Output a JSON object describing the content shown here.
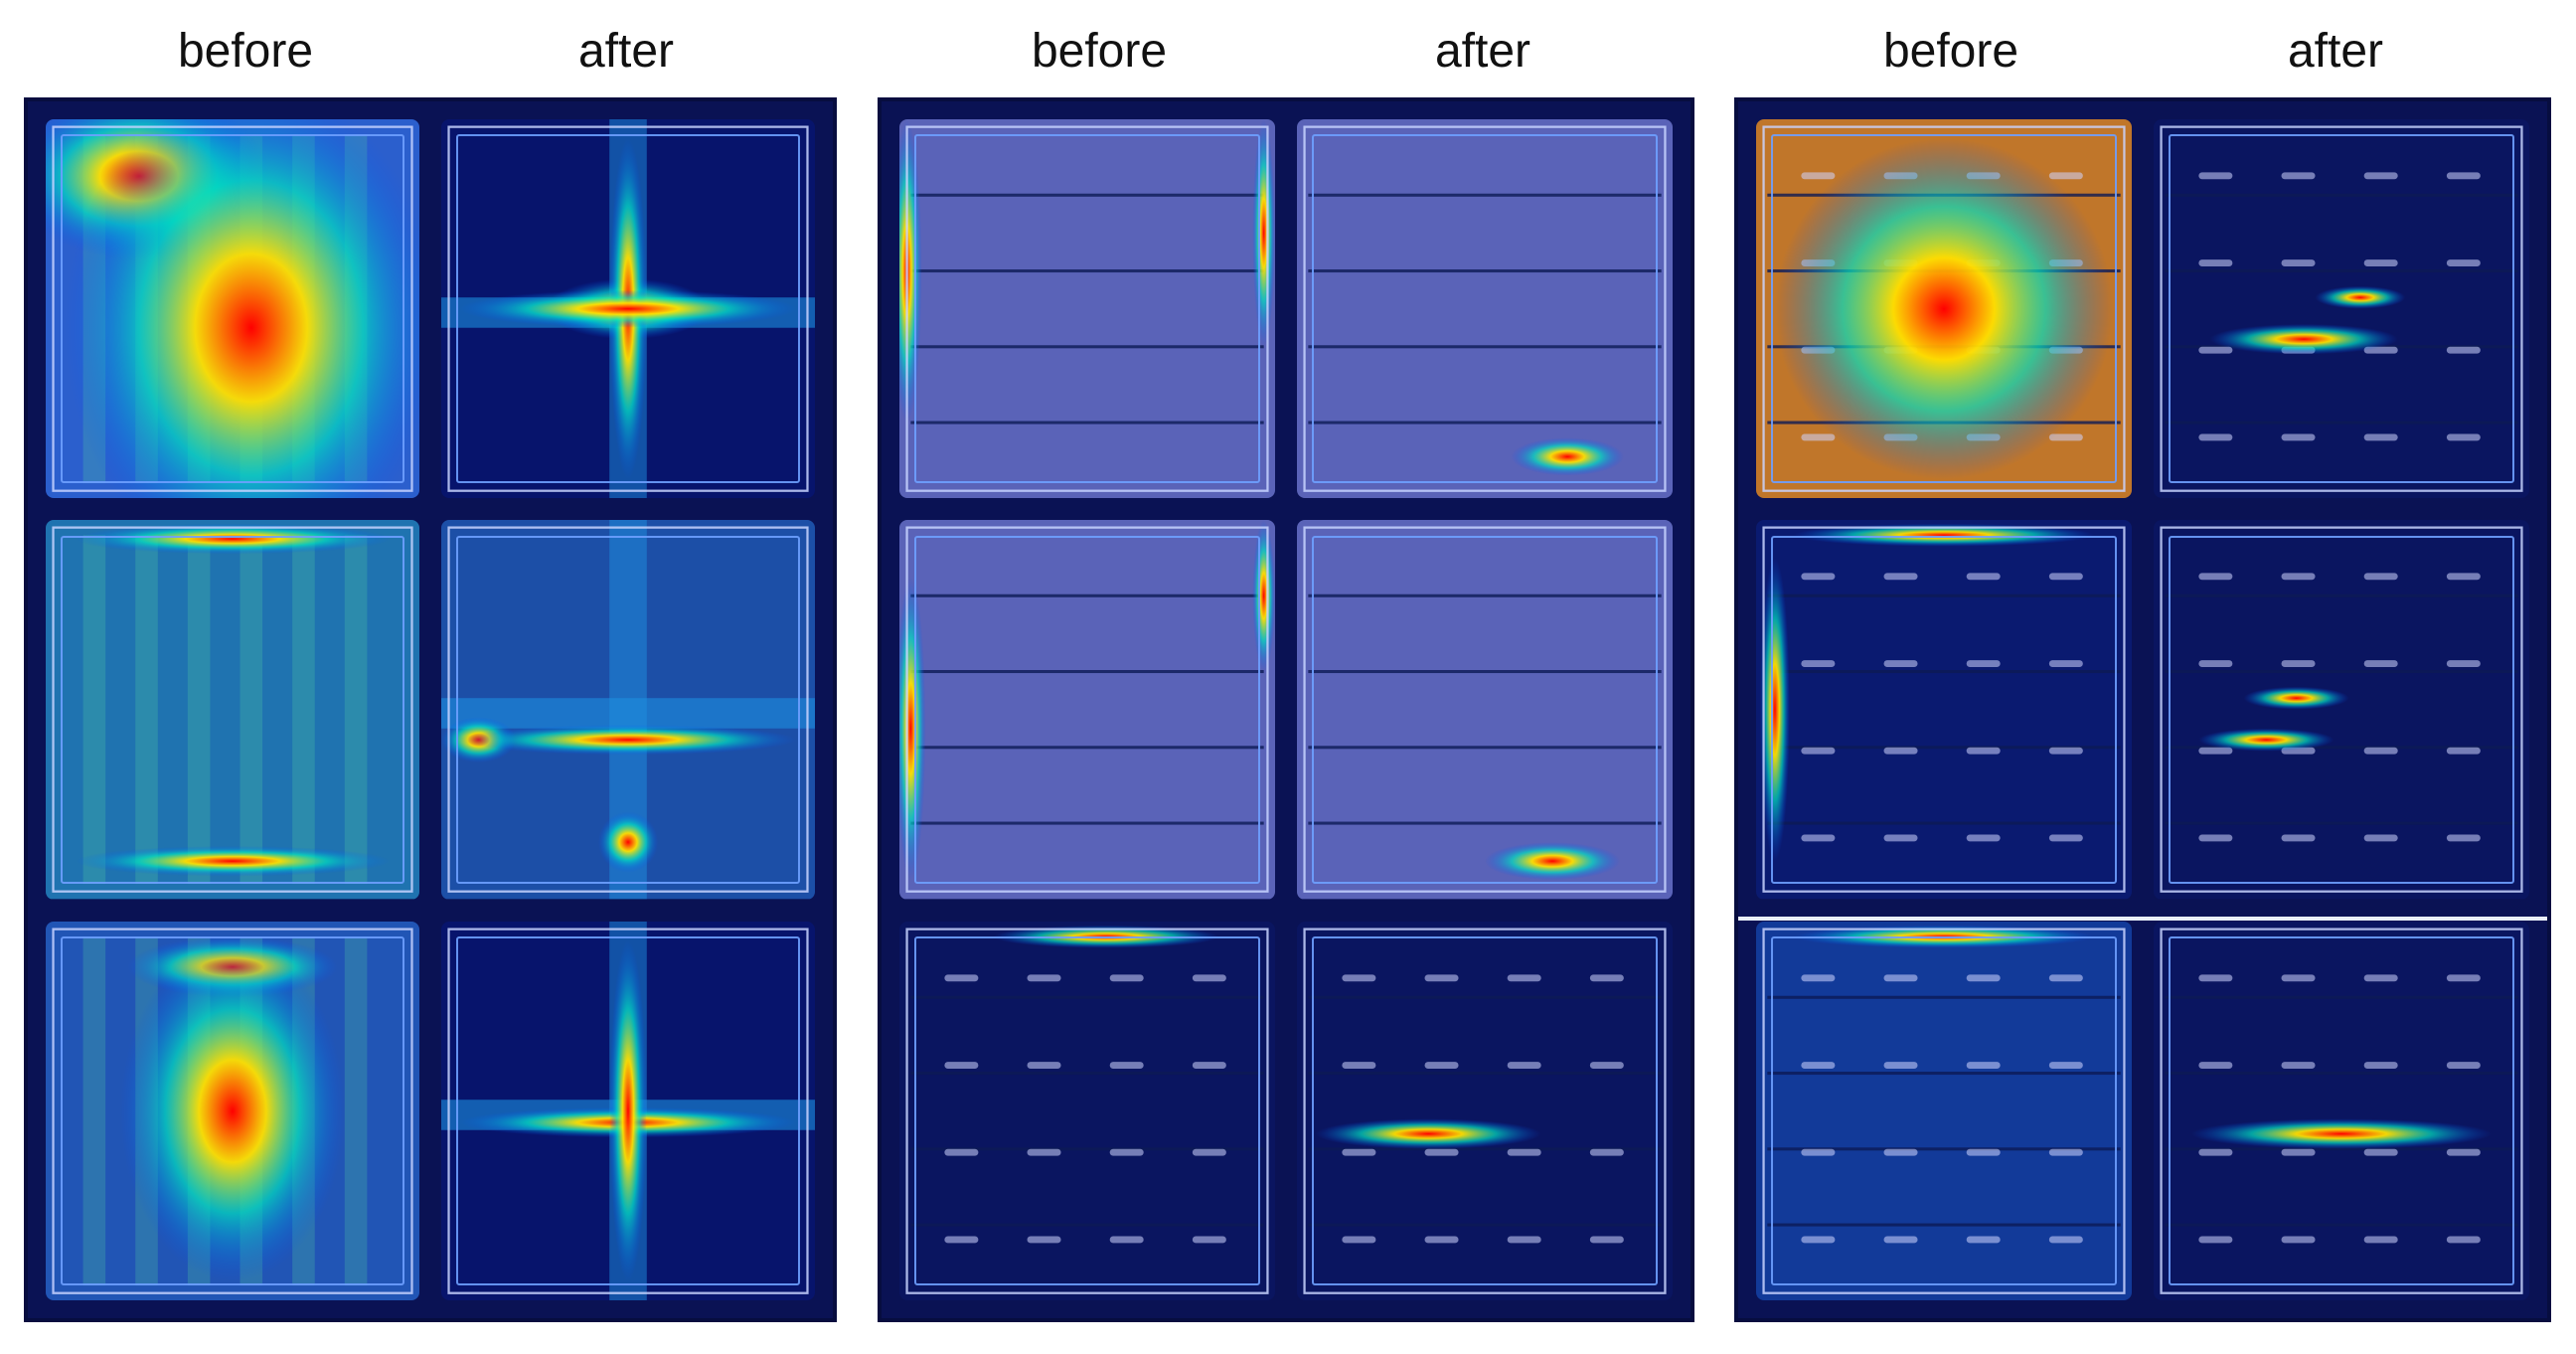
{
  "headers": [
    {
      "id": "p1-before",
      "label": "before"
    },
    {
      "id": "p1-after",
      "label": "after"
    },
    {
      "id": "p2-before",
      "label": "before"
    },
    {
      "id": "p2-after",
      "label": "after"
    },
    {
      "id": "p3-before",
      "label": "before"
    },
    {
      "id": "p3-after",
      "label": "after"
    }
  ],
  "images": [
    {
      "panel": 1,
      "row": 1,
      "col": "before",
      "base": "#2b5fcd",
      "hot": [
        [
          0.25,
          0.15,
          0.35,
          0.22
        ],
        [
          0.55,
          0.55,
          0.5,
          0.65
        ]
      ],
      "type": "uniform"
    },
    {
      "panel": 1,
      "row": 1,
      "col": "after",
      "base": "#07146c",
      "hot": [
        [
          0.5,
          0.5,
          0.22,
          0.08
        ],
        [
          0.5,
          0.5,
          0.05,
          0.45
        ],
        [
          0.5,
          0.5,
          0.45,
          0.05
        ]
      ],
      "type": "cross"
    },
    {
      "panel": 1,
      "row": 2,
      "col": "before",
      "base": "#1f73b0",
      "hot": [
        [
          0.5,
          0.05,
          0.42,
          0.04
        ],
        [
          0.5,
          0.9,
          0.42,
          0.04
        ]
      ],
      "type": "uniform"
    },
    {
      "panel": 1,
      "row": 2,
      "col": "after",
      "base": "#1c4fa7",
      "hot": [
        [
          0.1,
          0.58,
          0.1,
          0.06
        ],
        [
          0.5,
          0.85,
          0.08,
          0.08
        ],
        [
          0.5,
          0.58,
          0.45,
          0.04
        ]
      ],
      "type": "cross"
    },
    {
      "panel": 1,
      "row": 3,
      "col": "before",
      "base": "#2155b5",
      "hot": [
        [
          0.5,
          0.12,
          0.28,
          0.08
        ],
        [
          0.5,
          0.5,
          0.3,
          0.45
        ]
      ],
      "type": "uniform"
    },
    {
      "panel": 1,
      "row": 3,
      "col": "after",
      "base": "#07146c",
      "hot": [
        [
          0.5,
          0.53,
          0.45,
          0.04
        ],
        [
          0.5,
          0.5,
          0.05,
          0.45
        ]
      ],
      "type": "cross"
    },
    {
      "panel": 2,
      "row": 1,
      "col": "before",
      "base": "#5a63b8",
      "hot": [
        [
          0.02,
          0.4,
          0.04,
          0.4
        ],
        [
          0.97,
          0.3,
          0.03,
          0.3
        ]
      ],
      "type": "cell"
    },
    {
      "panel": 2,
      "row": 1,
      "col": "after",
      "base": "#5a63b8",
      "hot": [
        [
          0.72,
          0.89,
          0.15,
          0.05
        ]
      ],
      "type": "cell"
    },
    {
      "panel": 2,
      "row": 2,
      "col": "before",
      "base": "#5a63b8",
      "hot": [
        [
          0.03,
          0.55,
          0.04,
          0.4
        ],
        [
          0.97,
          0.2,
          0.03,
          0.2
        ]
      ],
      "type": "cell"
    },
    {
      "panel": 2,
      "row": 2,
      "col": "after",
      "base": "#5a63b8",
      "hot": [
        [
          0.68,
          0.9,
          0.18,
          0.05
        ]
      ],
      "type": "cell"
    },
    {
      "panel": 2,
      "row": 3,
      "col": "before",
      "base": "#0a1560",
      "hot": [
        [
          0.55,
          0.04,
          0.3,
          0.03
        ]
      ],
      "type": "dark"
    },
    {
      "panel": 2,
      "row": 3,
      "col": "after",
      "base": "#0a1560",
      "hot": [
        [
          0.35,
          0.56,
          0.3,
          0.04
        ]
      ],
      "type": "dark"
    },
    {
      "panel": 3,
      "row": 1,
      "col": "before",
      "base": "#c0762a",
      "hot": [
        [
          0.5,
          0.5,
          0.45,
          0.45
        ]
      ],
      "type": "pads"
    },
    {
      "panel": 3,
      "row": 1,
      "col": "after",
      "base": "#0a1560",
      "hot": [
        [
          0.4,
          0.58,
          0.25,
          0.04
        ],
        [
          0.55,
          0.47,
          0.12,
          0.03
        ]
      ],
      "type": "dark"
    },
    {
      "panel": 3,
      "row": 2,
      "col": "before",
      "base": "#0a1a70",
      "hot": [
        [
          0.5,
          0.04,
          0.4,
          0.03
        ],
        [
          0.05,
          0.5,
          0.04,
          0.4
        ]
      ],
      "type": "pads"
    },
    {
      "panel": 3,
      "row": 2,
      "col": "after",
      "base": "#0a1560",
      "hot": [
        [
          0.38,
          0.47,
          0.14,
          0.03
        ],
        [
          0.3,
          0.58,
          0.18,
          0.03
        ]
      ],
      "type": "dark"
    },
    {
      "panel": 3,
      "row": 3,
      "col": "before",
      "base": "#123a99",
      "hot": [
        [
          0.5,
          0.04,
          0.4,
          0.03
        ]
      ],
      "type": "pads"
    },
    {
      "panel": 3,
      "row": 3,
      "col": "after",
      "base": "#0a1560",
      "hot": [
        [
          0.5,
          0.56,
          0.4,
          0.04
        ]
      ],
      "type": "dark"
    }
  ]
}
